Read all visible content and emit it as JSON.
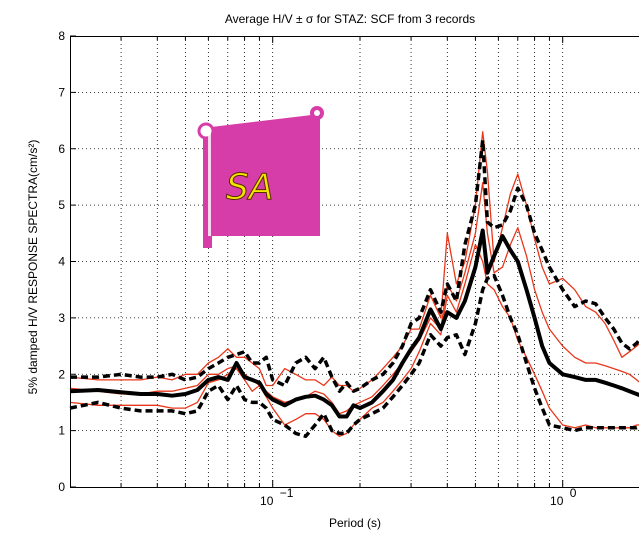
{
  "chart_data": {
    "type": "line",
    "title": "Average H/V ± σ for STAZ: SCF from 3 records",
    "xlabel": "Period (s)",
    "ylabel": "5% damped H/V RESPONSE SPECTRA(cm/s²)",
    "x_scale": "log",
    "xlim": [
      0.02,
      2.0
    ],
    "ylim": [
      0,
      8
    ],
    "grid": true,
    "x_ticks": [
      {
        "value": 0.1,
        "base": "10",
        "exp": "−1"
      },
      {
        "value": 1.0,
        "base": "10",
        "exp": "0"
      }
    ],
    "y_ticks": [
      0,
      1,
      2,
      3,
      4,
      5,
      6,
      7,
      8
    ],
    "x": [
      0.02,
      0.025,
      0.03,
      0.035,
      0.04,
      0.045,
      0.05,
      0.055,
      0.06,
      0.065,
      0.07,
      0.075,
      0.08,
      0.085,
      0.09,
      0.095,
      0.1,
      0.11,
      0.12,
      0.13,
      0.14,
      0.15,
      0.16,
      0.17,
      0.18,
      0.19,
      0.2,
      0.22,
      0.24,
      0.26,
      0.28,
      0.3,
      0.32,
      0.35,
      0.38,
      0.4,
      0.43,
      0.46,
      0.5,
      0.53,
      0.55,
      0.58,
      0.62,
      0.66,
      0.7,
      0.75,
      0.8,
      0.85,
      0.9,
      1.0,
      1.1,
      1.2,
      1.3,
      1.4,
      1.5,
      1.6,
      1.7,
      1.8,
      1.9,
      2.0
    ],
    "series": [
      {
        "style": "thin-red",
        "values": [
          1.95,
          1.9,
          1.9,
          1.9,
          1.95,
          1.9,
          2.0,
          2.0,
          2.2,
          2.3,
          2.45,
          2.3,
          2.3,
          2.2,
          2.1,
          1.8,
          1.8,
          2.1,
          2.0,
          1.9,
          1.9,
          1.8,
          1.95,
          1.8,
          1.8,
          1.7,
          1.75,
          1.9,
          2.1,
          2.3,
          2.5,
          2.8,
          2.8,
          3.4,
          3.0,
          4.5,
          3.6,
          4.0,
          5.0,
          6.3,
          5.6,
          4.0,
          4.6,
          5.2,
          5.55,
          5.0,
          4.4,
          3.9,
          3.6,
          3.7,
          3.5,
          3.2,
          3.1,
          2.9,
          2.6,
          2.3,
          2.4,
          2.5,
          2.6,
          2.6
        ]
      },
      {
        "style": "thin-red",
        "values": [
          1.5,
          1.45,
          1.45,
          1.45,
          1.45,
          1.4,
          1.4,
          1.5,
          1.85,
          1.9,
          2.0,
          2.1,
          1.9,
          1.7,
          1.8,
          1.6,
          1.4,
          1.1,
          1.2,
          1.3,
          1.3,
          1.2,
          1.0,
          0.9,
          0.95,
          1.1,
          1.2,
          1.4,
          1.5,
          1.7,
          1.9,
          2.1,
          2.4,
          2.9,
          2.7,
          3.4,
          3.1,
          3.6,
          4.3,
          4.0,
          3.6,
          3.5,
          3.2,
          3.0,
          2.6,
          2.3,
          2.0,
          1.7,
          1.4,
          1.1,
          1.05,
          1.1,
          1.05,
          1.05,
          1.05,
          1.05,
          1.05,
          1.1,
          1.1,
          1.1
        ]
      },
      {
        "style": "thin-red",
        "values": [
          1.75,
          1.7,
          1.65,
          1.65,
          1.7,
          1.7,
          1.75,
          1.8,
          2.0,
          2.0,
          2.1,
          2.15,
          2.0,
          1.9,
          1.8,
          1.7,
          1.6,
          1.5,
          1.55,
          1.6,
          1.7,
          1.65,
          1.5,
          1.3,
          1.35,
          1.45,
          1.5,
          1.6,
          1.8,
          2.0,
          2.2,
          2.4,
          2.6,
          3.0,
          2.8,
          3.6,
          3.3,
          3.8,
          4.5,
          5.4,
          4.5,
          3.8,
          3.9,
          4.3,
          4.6,
          4.1,
          3.5,
          3.1,
          2.8,
          2.5,
          2.3,
          2.2,
          2.2,
          2.15,
          2.1,
          2.05,
          2.0,
          1.9,
          1.8,
          1.75
        ]
      },
      {
        "style": "mean",
        "values": [
          1.7,
          1.72,
          1.68,
          1.65,
          1.65,
          1.62,
          1.65,
          1.72,
          1.9,
          1.95,
          1.9,
          2.2,
          1.95,
          1.9,
          1.85,
          1.65,
          1.55,
          1.45,
          1.55,
          1.6,
          1.62,
          1.55,
          1.45,
          1.25,
          1.25,
          1.45,
          1.4,
          1.5,
          1.7,
          1.9,
          2.2,
          2.45,
          2.65,
          3.15,
          2.8,
          3.1,
          3.0,
          3.3,
          3.9,
          4.55,
          3.8,
          4.1,
          4.45,
          4.2,
          4.0,
          3.5,
          3.0,
          2.5,
          2.2,
          2.0,
          1.95,
          1.9,
          1.9,
          1.85,
          1.8,
          1.75,
          1.7,
          1.65,
          1.6,
          1.6
        ]
      },
      {
        "style": "plus-sigma",
        "values": [
          1.95,
          1.95,
          2.0,
          1.95,
          1.95,
          2.0,
          1.9,
          1.95,
          2.1,
          2.2,
          2.3,
          2.35,
          2.4,
          2.2,
          2.2,
          2.3,
          1.9,
          1.8,
          2.2,
          2.3,
          2.1,
          2.3,
          1.95,
          1.7,
          1.85,
          1.7,
          1.75,
          1.9,
          2.0,
          2.2,
          2.5,
          2.9,
          3.0,
          3.5,
          3.1,
          3.6,
          3.3,
          4.3,
          5.0,
          6.15,
          4.7,
          4.6,
          4.65,
          4.9,
          5.3,
          5.0,
          4.5,
          4.2,
          3.9,
          3.5,
          3.2,
          3.3,
          3.25,
          3.0,
          2.8,
          2.55,
          2.45,
          2.55,
          2.7,
          2.75
        ]
      },
      {
        "style": "minus-sigma",
        "values": [
          1.4,
          1.5,
          1.4,
          1.35,
          1.35,
          1.35,
          1.3,
          1.35,
          1.7,
          1.8,
          1.55,
          1.8,
          1.55,
          1.5,
          1.5,
          1.4,
          1.2,
          1.1,
          0.95,
          0.9,
          1.1,
          1.3,
          1.0,
          0.95,
          0.95,
          1.1,
          1.2,
          1.3,
          1.4,
          1.6,
          1.8,
          2.0,
          2.2,
          2.7,
          2.5,
          2.65,
          2.7,
          2.35,
          2.9,
          3.5,
          3.7,
          3.75,
          3.4,
          3.0,
          2.7,
          2.2,
          1.75,
          1.4,
          1.1,
          1.05,
          1.0,
          1.05,
          1.05,
          1.05,
          1.05,
          1.05,
          1.05,
          1.05,
          1.1,
          1.1
        ]
      }
    ]
  },
  "logo": {
    "text": "SA",
    "colors": {
      "banner": "#d63da8",
      "text": "#f5e500",
      "outline": "#5a2a00"
    }
  }
}
